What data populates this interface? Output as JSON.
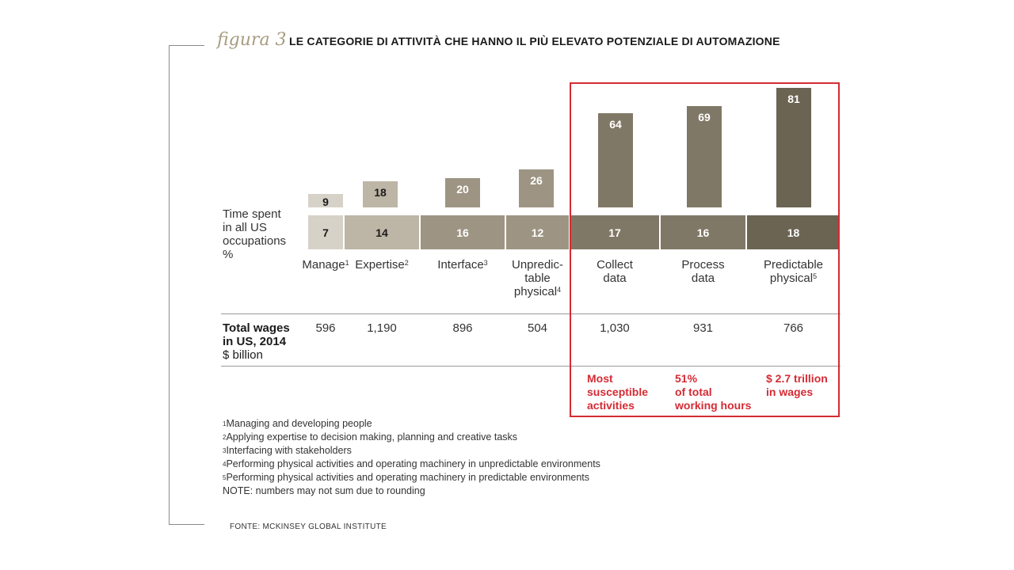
{
  "figure_label": "figura 3",
  "title": "LE CATEGORIE DI ATTIVITÀ CHE HANNO IL PIÙ ELEVATO POTENZIALE DI AUTOMAZIONE",
  "time_spent_label": [
    "Time spent",
    "in all US",
    "occupations",
    "%"
  ],
  "wages_label": {
    "line1": "Total wages",
    "line2": "in US, 2014",
    "line3": "$ billion"
  },
  "chart_data": {
    "type": "bar",
    "categories": [
      {
        "name": "Manage",
        "lines": [
          "Manage"
        ],
        "sup": "1"
      },
      {
        "name": "Expertise",
        "lines": [
          "Expertise"
        ],
        "sup": "2"
      },
      {
        "name": "Interface",
        "lines": [
          "Interface"
        ],
        "sup": "3"
      },
      {
        "name": "Unpredictable physical",
        "lines": [
          "Unpredic-",
          "table",
          "physical"
        ],
        "sup": "4"
      },
      {
        "name": "Collect data",
        "lines": [
          "Collect",
          "data"
        ],
        "sup": ""
      },
      {
        "name": "Process data",
        "lines": [
          "Process",
          "data"
        ],
        "sup": ""
      },
      {
        "name": "Predictable physical",
        "lines": [
          "Predictable",
          "physical"
        ],
        "sup": "5"
      }
    ],
    "automation_potential_pct": [
      9,
      18,
      20,
      26,
      64,
      69,
      81
    ],
    "time_spent_pct": [
      7,
      14,
      16,
      12,
      17,
      16,
      18
    ],
    "total_wages_billion": [
      "596",
      "1,190",
      "896",
      "504",
      "1,030",
      "931",
      "766"
    ],
    "colors": {
      "light": "#d7d2c8",
      "beige": "#bdb5a5",
      "mid": "#9d9483",
      "dark": "#807866",
      "darkest": "#6b6453",
      "text_dark": "#1a1a1a",
      "text_light": "#ffffff",
      "highlight": "#d52b34"
    },
    "bar_color_keys": [
      "light",
      "beige",
      "mid",
      "mid",
      "dark",
      "dark",
      "darkest"
    ]
  },
  "highlight_notes": [
    [
      "Most",
      "susceptible",
      "activities"
    ],
    [
      "51%",
      "of total",
      "working hours"
    ],
    [
      "$ 2.7 trillion",
      "in wages"
    ]
  ],
  "footnotes": [
    {
      "sup": "1",
      "text": "Managing and developing people"
    },
    {
      "sup": "2",
      "text": "Applying expertise to decision making, planning and creative tasks"
    },
    {
      "sup": "3",
      "text": "Interfacing with stakeholders"
    },
    {
      "sup": "4",
      "text": "Performing physical activities and operating machinery in unpredictable environments"
    },
    {
      "sup": "5",
      "text": "Performing physical activities and operating machinery in predictable environments"
    },
    {
      "sup": "",
      "text": "NOTE: numbers may not sum due to rounding"
    }
  ],
  "source": "FONTE: MCKINSEY GLOBAL INSTITUTE"
}
